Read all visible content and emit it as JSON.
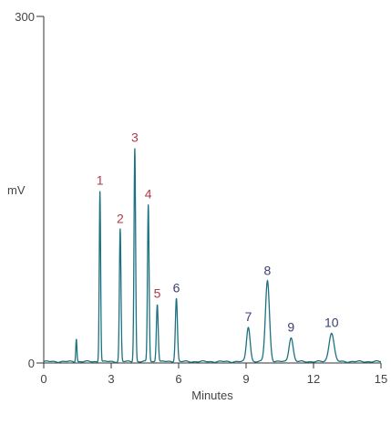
{
  "chart_data": {
    "type": "line",
    "xlabel": "Minutes",
    "ylabel": "mV",
    "xlim": [
      0,
      15
    ],
    "ylim": [
      0,
      300
    ],
    "x_ticks": [
      0,
      3,
      6,
      9,
      12,
      15
    ],
    "y_ticks": [
      0,
      300
    ],
    "x_tick_labels": [
      "0",
      "3",
      "6",
      "9",
      "12",
      "15"
    ],
    "y_tick_labels": [
      "0",
      "300"
    ],
    "grid": false,
    "trace_color": "#1b7280",
    "series": [
      {
        "peaks": [
          {
            "label": "",
            "rt": 1.45,
            "height": 20,
            "width": 0.025
          },
          {
            "label": "1",
            "rt": 2.5,
            "height": 148,
            "width": 0.03
          },
          {
            "label": "2",
            "rt": 3.4,
            "height": 115,
            "width": 0.035
          },
          {
            "label": "3",
            "rt": 4.05,
            "height": 185,
            "width": 0.035
          },
          {
            "label": "4",
            "rt": 4.65,
            "height": 136,
            "width": 0.035
          },
          {
            "label": "5",
            "rt": 5.05,
            "height": 50,
            "width": 0.04
          },
          {
            "label": "6",
            "rt": 5.9,
            "height": 55,
            "width": 0.045
          },
          {
            "label": "7",
            "rt": 9.1,
            "height": 30,
            "width": 0.08
          },
          {
            "label": "8",
            "rt": 9.95,
            "height": 70,
            "width": 0.09
          },
          {
            "label": "9",
            "rt": 11.0,
            "height": 21,
            "width": 0.09
          },
          {
            "label": "10",
            "rt": 12.8,
            "height": 25,
            "width": 0.11
          }
        ]
      }
    ],
    "peak_label_colors": {
      "1": "#b23a48",
      "2": "#b23a48",
      "3": "#b23a48",
      "4": "#b23a48",
      "5": "#b23a48",
      "6": "#3a3f73",
      "7": "#3a3f73",
      "8": "#3a3f73",
      "9": "#3a3f73",
      "10": "#3a3f73"
    }
  }
}
